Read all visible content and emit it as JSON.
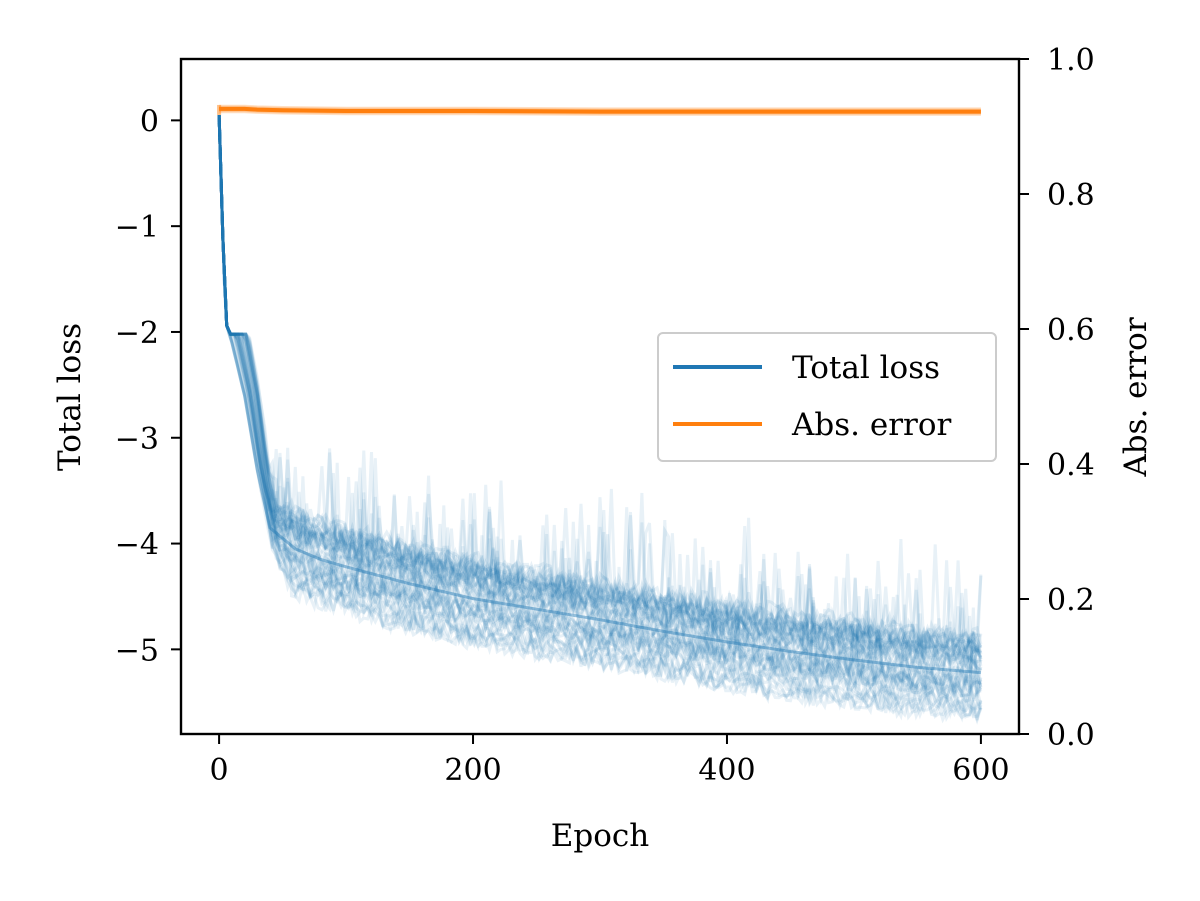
{
  "chart_data": {
    "type": "line",
    "xlabel": "Epoch",
    "ylabel_left": "Total loss",
    "ylabel_right": "Abs. error",
    "xlim": [
      -30,
      630
    ],
    "ylim_left": [
      -5.8,
      0.58
    ],
    "ylim_right": [
      0.0,
      1.0
    ],
    "x_ticks": [
      0,
      200,
      400,
      600
    ],
    "x_tick_labels": [
      "0",
      "200",
      "400",
      "600"
    ],
    "y_left_ticks": [
      0,
      -1,
      -2,
      -3,
      -4,
      -5
    ],
    "y_left_tick_labels": [
      "0",
      "−1",
      "−2",
      "−3",
      "−4",
      "−5"
    ],
    "y_right_ticks": [
      0.0,
      0.2,
      0.4,
      0.6,
      0.8,
      1.0
    ],
    "y_right_tick_labels": [
      "0.0",
      "0.2",
      "0.4",
      "0.6",
      "0.8",
      "1.0"
    ],
    "grid": false,
    "legend_position": "center-right",
    "legend": [
      {
        "label": "Total loss",
        "color": "#1f77b4"
      },
      {
        "label": "Abs. error",
        "color": "#ff7f0e"
      }
    ],
    "series": [
      {
        "name": "Total loss",
        "axis": "left",
        "color": "#1f77b4",
        "note_runs": 50,
        "x": [
          0,
          5,
          10,
          20,
          30,
          40,
          60,
          80,
          100,
          150,
          200,
          250,
          300,
          350,
          400,
          450,
          500,
          550,
          600
        ],
        "values": [
          0.05,
          -1.9,
          -2.1,
          -2.6,
          -3.3,
          -3.85,
          -4.05,
          -4.15,
          -4.22,
          -4.38,
          -4.52,
          -4.62,
          -4.72,
          -4.83,
          -4.93,
          -5.02,
          -5.1,
          -5.17,
          -5.22
        ]
      },
      {
        "name": "Abs. error",
        "axis": "right",
        "color": "#ff7f0e",
        "x": [
          0,
          10,
          20,
          30,
          50,
          100,
          200,
          300,
          400,
          500,
          600
        ],
        "values": [
          0.926,
          0.926,
          0.926,
          0.925,
          0.924,
          0.923,
          0.923,
          0.922,
          0.922,
          0.922,
          0.922
        ]
      }
    ]
  }
}
